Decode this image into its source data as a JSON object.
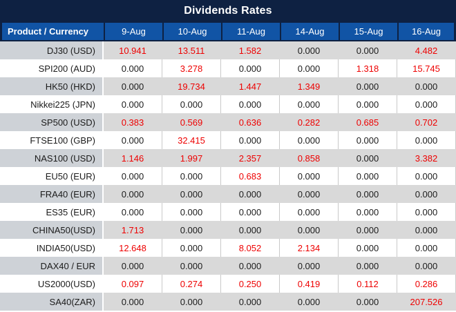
{
  "title": "Dividends Rates",
  "chart_data": {
    "type": "table",
    "title": "Dividends Rates",
    "columns": [
      "Product / Currency",
      "9-Aug",
      "10-Aug",
      "11-Aug",
      "14-Aug",
      "15-Aug",
      "16-Aug"
    ],
    "rows": [
      {
        "product": "DJ30 (USD)",
        "values": [
          "10.941",
          "13.511",
          "1.582",
          "0.000",
          "0.000",
          "4.482"
        ]
      },
      {
        "product": "SPI200 (AUD)",
        "values": [
          "0.000",
          "3.278",
          "0.000",
          "0.000",
          "1.318",
          "15.745"
        ]
      },
      {
        "product": "HK50 (HKD)",
        "values": [
          "0.000",
          "19.734",
          "1.447",
          "1.349",
          "0.000",
          "0.000"
        ]
      },
      {
        "product": "Nikkei225 (JPN)",
        "values": [
          "0.000",
          "0.000",
          "0.000",
          "0.000",
          "0.000",
          "0.000"
        ]
      },
      {
        "product": "SP500 (USD)",
        "values": [
          "0.383",
          "0.569",
          "0.636",
          "0.282",
          "0.685",
          "0.702"
        ]
      },
      {
        "product": "FTSE100 (GBP)",
        "values": [
          "0.000",
          "32.415",
          "0.000",
          "0.000",
          "0.000",
          "0.000"
        ]
      },
      {
        "product": "NAS100 (USD)",
        "values": [
          "1.146",
          "1.997",
          "2.357",
          "0.858",
          "0.000",
          "3.382"
        ]
      },
      {
        "product": "EU50 (EUR)",
        "values": [
          "0.000",
          "0.000",
          "0.683",
          "0.000",
          "0.000",
          "0.000"
        ]
      },
      {
        "product": "FRA40 (EUR)",
        "values": [
          "0.000",
          "0.000",
          "0.000",
          "0.000",
          "0.000",
          "0.000"
        ]
      },
      {
        "product": "ES35 (EUR)",
        "values": [
          "0.000",
          "0.000",
          "0.000",
          "0.000",
          "0.000",
          "0.000"
        ]
      },
      {
        "product": "CHINA50(USD)",
        "values": [
          "1.713",
          "0.000",
          "0.000",
          "0.000",
          "0.000",
          "0.000"
        ]
      },
      {
        "product": "INDIA50(USD)",
        "values": [
          "12.648",
          "0.000",
          "8.052",
          "2.134",
          "0.000",
          "0.000"
        ]
      },
      {
        "product": "DAX40 / EUR",
        "values": [
          "0.000",
          "0.000",
          "0.000",
          "0.000",
          "0.000",
          "0.000"
        ]
      },
      {
        "product": "US2000(USD)",
        "values": [
          "0.097",
          "0.274",
          "0.250",
          "0.419",
          "0.112",
          "0.286"
        ]
      },
      {
        "product": "SA40(ZAR)",
        "values": [
          "0.000",
          "0.000",
          "0.000",
          "0.000",
          "0.000",
          "207.526"
        ]
      }
    ],
    "layout": {
      "striped_rows": "odd data rows shaded gray starting with first row",
      "value_color_rule": "non-zero values rendered red, zero values black"
    }
  },
  "colors": {
    "title_bg": "#0e2142",
    "header_bg": "#1154a5",
    "header_text": "#ffffff",
    "alt_product_bg": "#ced2d7",
    "alt_value_bg": "#d9d9d9",
    "grid_line": "#c9c9c9",
    "nonzero_value": "#ee0000",
    "zero_value": "#1b1b1b"
  }
}
